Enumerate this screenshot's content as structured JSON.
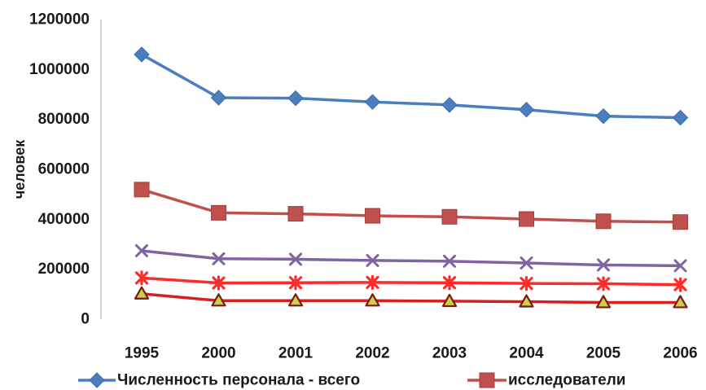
{
  "chart_data": {
    "type": "line",
    "title": "",
    "xlabel": "",
    "ylabel": "человек",
    "ylim": [
      0,
      1200000
    ],
    "yticks": [
      0,
      200000,
      400000,
      600000,
      800000,
      1000000,
      1200000
    ],
    "ytick_labels": [
      "0",
      "200000",
      "400000",
      "600000",
      "800000",
      "1000000",
      "1200000"
    ],
    "grid": false,
    "legend_position": "bottom",
    "categories": [
      "1995",
      "2000",
      "2001",
      "2002",
      "2003",
      "2004",
      "2005",
      "2006"
    ],
    "series": [
      {
        "name": "Численность персонала - всего",
        "color": "#4a7ebf",
        "marker": "diamond",
        "values": [
          1060000,
          887000,
          885000,
          870000,
          858000,
          839000,
          813000,
          807000
        ]
      },
      {
        "name": "исследователи",
        "color": "#c0504d",
        "marker": "square",
        "values": [
          519000,
          426000,
          422000,
          414000,
          410000,
          401000,
          392000,
          389000
        ]
      },
      {
        "name": "",
        "color": "#8064a2",
        "marker": "x",
        "values": [
          274000,
          242000,
          240000,
          235000,
          232000,
          225000,
          217000,
          214000
        ]
      },
      {
        "name": "",
        "color": "#ff2a2a",
        "marker": "star",
        "values": [
          165000,
          145000,
          146000,
          147000,
          146000,
          143000,
          142000,
          138000
        ]
      },
      {
        "name": "",
        "color": "#d62020",
        "marker": "triangle",
        "values": [
          102000,
          74000,
          74000,
          74000,
          72000,
          70000,
          67000,
          67000
        ]
      }
    ]
  }
}
